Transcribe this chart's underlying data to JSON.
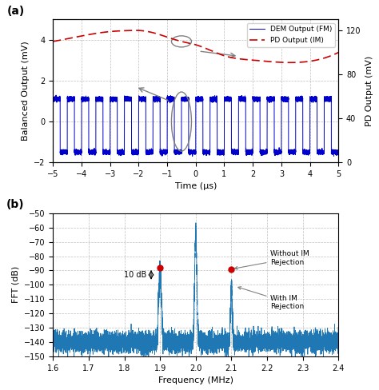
{
  "fig_width": 4.74,
  "fig_height": 4.88,
  "dpi": 100,
  "panel_a": {
    "xlim": [
      -5,
      5
    ],
    "ylim_left": [
      -2,
      5
    ],
    "ylim_right": [
      0,
      130
    ],
    "yticks_left": [
      -2,
      0,
      2,
      4
    ],
    "yticks_right": [
      0,
      40,
      80,
      120
    ],
    "xlabel": "Time (μs)",
    "ylabel_left": "Balanced Output (mV)",
    "ylabel_right": "PD Output (mV)",
    "xticks": [
      -5,
      -4,
      -3,
      -2,
      -1,
      0,
      1,
      2,
      3,
      4,
      5
    ],
    "signal_freq_mhz": 2.0,
    "dem_amp_high": 1.1,
    "dem_amp_low": -1.5,
    "dem_color": "#0000CC",
    "pd_color": "#CC0000",
    "legend_dem": "DEM Output (FM)",
    "legend_pd": "PD Output (IM)",
    "pd_values_x": [
      -5,
      -4,
      -3,
      -2.2,
      -2,
      -1.5,
      -0.5,
      0,
      1,
      2,
      3,
      4,
      5
    ],
    "pd_values_y": [
      110,
      115,
      119,
      120,
      120,
      118,
      110,
      107,
      97,
      93,
      91,
      92,
      100
    ]
  },
  "panel_b": {
    "xlim": [
      1.6,
      2.4
    ],
    "ylim": [
      -150,
      -50
    ],
    "yticks": [
      -150,
      -140,
      -130,
      -120,
      -110,
      -100,
      -90,
      -80,
      -70,
      -60,
      -50
    ],
    "xticks": [
      1.6,
      1.7,
      1.8,
      1.9,
      2.0,
      2.1,
      2.2,
      2.3,
      2.4
    ],
    "xlabel": "Frequency (MHz)",
    "ylabel": "FFT (dB)",
    "signal_color": "#1F77B4",
    "noise_floor": -140,
    "noise_std": 3.5,
    "peak1_freq": 1.9,
    "peak1_height": -88,
    "peak2_freq": 2.0,
    "peak2_height": -63,
    "peak3_freq": 2.1,
    "peak3_height": -101,
    "marker1_y": -88,
    "marker2_y": -89,
    "marker_color": "#CC0000",
    "annotation1_text": "Without IM\nRejection",
    "annotation2_text": "With IM\nRejection",
    "brace_label": "10 dB"
  }
}
